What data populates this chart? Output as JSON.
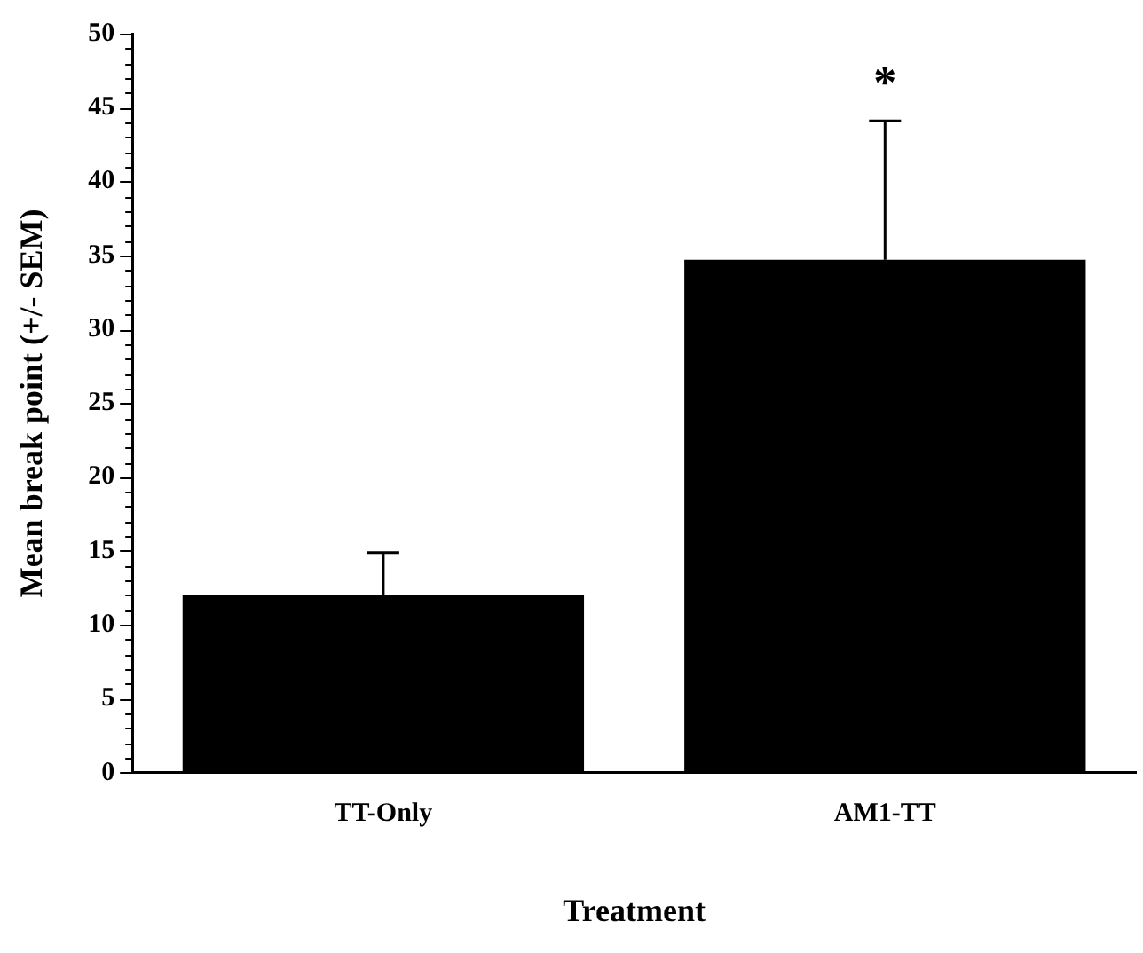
{
  "chart_data": {
    "type": "bar",
    "xlabel": "Treatment",
    "ylabel": "Mean break point (+/- SEM)",
    "categories": [
      "TT-Only",
      "AM1-TT"
    ],
    "series": [
      {
        "color": "#000000",
        "values": [
          12,
          34.7
        ],
        "errors": [
          [
            12,
            14.9
          ],
          [
            34.7,
            44.1
          ]
        ]
      }
    ],
    "annotations": [
      "*"
    ],
    "ylim": [
      0,
      50
    ],
    "yticks": [
      0,
      {
        "value": 1,
        "label": null
      },
      {
        "value": 2,
        "label": null
      },
      {
        "value": 3,
        "label": null
      },
      {
        "value": 4,
        "label": null
      },
      5,
      {
        "value": 6,
        "label": null
      },
      {
        "value": 7,
        "label": null
      },
      {
        "value": 8,
        "label": null
      },
      {
        "value": 9,
        "label": null
      },
      10,
      {
        "value": 11,
        "label": null
      },
      {
        "value": 12,
        "label": null
      },
      {
        "value": 13,
        "label": null
      },
      {
        "value": 14,
        "label": null
      },
      15,
      {
        "value": 16,
        "label": null
      },
      {
        "value": 17,
        "label": null
      },
      {
        "value": 18,
        "label": null
      },
      {
        "value": 19,
        "label": null
      },
      20,
      {
        "value": 21,
        "label": null
      },
      {
        "value": 22,
        "label": null
      },
      {
        "value": 23,
        "label": null
      },
      {
        "value": 24,
        "label": null
      },
      25,
      {
        "value": 26,
        "label": null
      },
      {
        "value": 27,
        "label": null
      },
      {
        "value": 28,
        "label": null
      },
      {
        "value": 29,
        "label": null
      },
      30,
      {
        "value": 31,
        "label": null
      },
      {
        "value": 32,
        "label": null
      },
      {
        "value": 33,
        "label": null
      },
      {
        "value": 34,
        "label": null
      },
      35,
      {
        "value": 36,
        "label": null
      },
      {
        "value": 37,
        "label": null
      },
      {
        "value": 38,
        "label": null
      },
      {
        "value": 39,
        "label": null
      },
      40,
      {
        "value": 41,
        "label": null
      },
      {
        "value": 42,
        "label": null
      },
      {
        "value": 43,
        "label": null
      },
      {
        "value": 44,
        "label": null
      },
      45,
      {
        "value": 46,
        "label": null
      },
      {
        "value": 47,
        "label": null
      },
      {
        "value": 48,
        "label": null
      },
      {
        "value": 49,
        "label": null
      },
      50
    ],
    "grid": false,
    "legend": false
  }
}
